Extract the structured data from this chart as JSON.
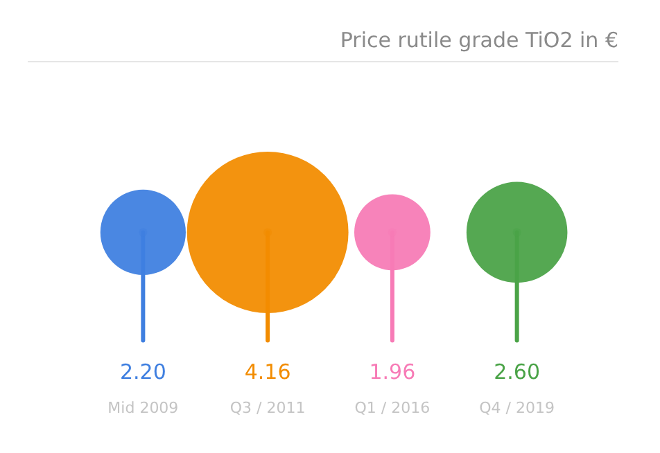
{
  "chart_data": {
    "type": "other",
    "title": "Price rutile grade TiO2 in €",
    "categories": [
      "Mid 2009",
      "Q3 / 2011",
      "Q1 / 2016",
      "Q4 / 2019"
    ],
    "values": [
      2.2,
      4.16,
      1.96,
      2.6
    ],
    "value_labels": [
      "2.20",
      "4.16",
      "1.96",
      "2.60"
    ],
    "colors": [
      "#3f7fe0",
      "#f28c00",
      "#f77bb6",
      "#4aa347"
    ]
  }
}
